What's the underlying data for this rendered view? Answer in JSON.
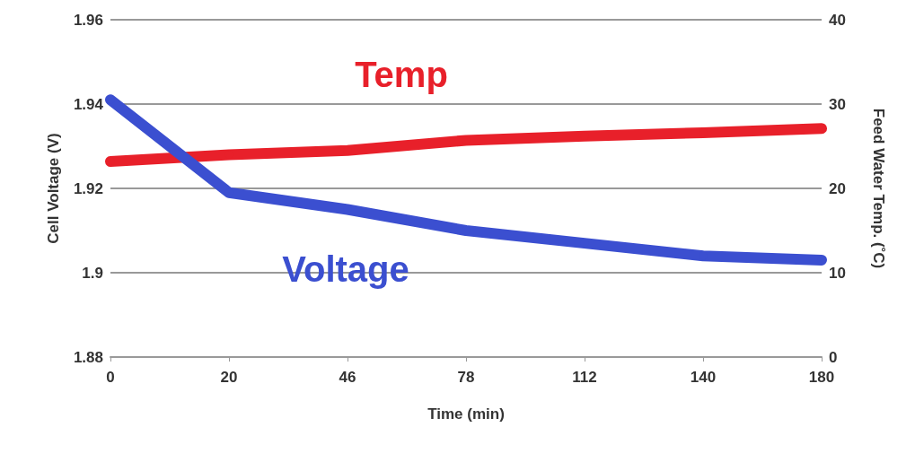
{
  "chart_data": {
    "type": "line",
    "xlabel": "Time (min)",
    "ylabel": "Cell Voltage (V)",
    "y2label": "Feed Water Temp. (˚C)",
    "categories": [
      "0",
      "20",
      "46",
      "78",
      "112",
      "140",
      "180"
    ],
    "series": [
      {
        "name": "Temp",
        "color": "#e8202a",
        "axis": "y2",
        "values": [
          23.2,
          24.0,
          24.5,
          25.7,
          26.2,
          26.6,
          27.1
        ]
      },
      {
        "name": "Voltage",
        "color": "#3b4fd0",
        "values": [
          1.941,
          1.919,
          1.915,
          1.91,
          1.907,
          1.904,
          1.903
        ]
      }
    ],
    "ylim": [
      1.88,
      1.96
    ],
    "yticks": [
      1.88,
      1.9,
      1.92,
      1.94,
      1.96
    ],
    "y2lim": [
      0,
      40
    ],
    "y2ticks": [
      0,
      10,
      20,
      30,
      40
    ],
    "grid": "y",
    "legend": false,
    "marker": "circle",
    "line_style": "solid"
  }
}
